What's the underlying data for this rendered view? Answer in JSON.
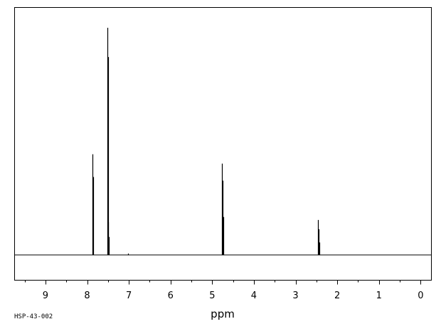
{
  "chart_data": {
    "type": "line",
    "title": "",
    "xlabel": "ppm",
    "ylabel": "",
    "x_reversed": true,
    "xlim": [
      9.75,
      -0.25
    ],
    "ylim": [
      0,
      1
    ],
    "x_ticks": [
      9,
      8,
      7,
      6,
      5,
      4,
      3,
      2,
      1,
      0
    ],
    "x_tick_labels": [
      "9",
      "8",
      "7",
      "6",
      "5",
      "4",
      "3",
      "2",
      "1",
      "0"
    ],
    "x_minor_step": 0.5,
    "grid": false,
    "legend": "none",
    "sample_id": "HSP-43-002",
    "line_color": "#000000",
    "peaks": [
      {
        "ppm": 7.87,
        "height": 0.443
      },
      {
        "ppm": 7.855,
        "height": 0.343
      },
      {
        "ppm": 7.52,
        "height": 1.0
      },
      {
        "ppm": 7.505,
        "height": 0.871
      },
      {
        "ppm": 7.49,
        "height": 0.144
      },
      {
        "ppm": 7.475,
        "height": 0.079
      },
      {
        "ppm": 7.02,
        "height": 0.006
      },
      {
        "ppm": 4.765,
        "height": 0.402
      },
      {
        "ppm": 4.75,
        "height": 0.327
      },
      {
        "ppm": 4.735,
        "height": 0.167
      },
      {
        "ppm": 2.455,
        "height": 0.154
      },
      {
        "ppm": 2.445,
        "height": 0.113
      },
      {
        "ppm": 2.435,
        "height": 0.055
      }
    ]
  }
}
